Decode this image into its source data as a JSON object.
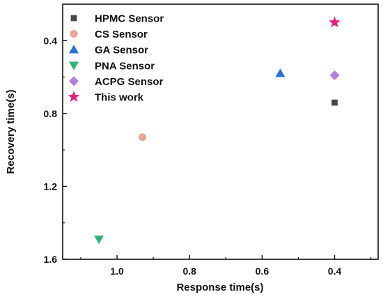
{
  "chart_data": {
    "type": "scatter",
    "title": "",
    "xlabel": "Response time(s)",
    "ylabel": "Recovery time(s)",
    "xlim": [
      1.15,
      0.28
    ],
    "ylim": [
      1.6,
      0.2
    ],
    "x_reversed": true,
    "y_reversed": true,
    "xticks": [
      1.0,
      0.8,
      0.6,
      0.4
    ],
    "xtick_labels": [
      "1.0",
      "0.8",
      "0.6",
      "0.4"
    ],
    "yticks": [
      0.4,
      0.8,
      1.2,
      1.6
    ],
    "ytick_labels": [
      "0.4",
      "0.8",
      "1.2",
      "1.6"
    ],
    "grid": false,
    "legend_position": "top-left",
    "series": [
      {
        "name": "HPMC Sensor",
        "marker": "square",
        "color": "#484848",
        "x": [
          0.4
        ],
        "y": [
          0.74
        ]
      },
      {
        "name": "CS Sensor",
        "marker": "circle",
        "color": "#e5ab96",
        "x": [
          0.93
        ],
        "y": [
          0.93
        ]
      },
      {
        "name": "GA Sensor",
        "marker": "triangle-up",
        "color": "#2a6fdb",
        "x": [
          0.55
        ],
        "y": [
          0.58
        ]
      },
      {
        "name": "PNA Sensor",
        "marker": "triangle-down",
        "color": "#2fb577",
        "x": [
          1.05
        ],
        "y": [
          1.49
        ]
      },
      {
        "name": "ACPG Sensor",
        "marker": "diamond",
        "color": "#b07ee0",
        "x": [
          0.4
        ],
        "y": [
          0.59
        ]
      },
      {
        "name": "This work",
        "marker": "star",
        "color": "#ee1d7c",
        "x": [
          0.4
        ],
        "y": [
          0.3
        ]
      }
    ]
  }
}
